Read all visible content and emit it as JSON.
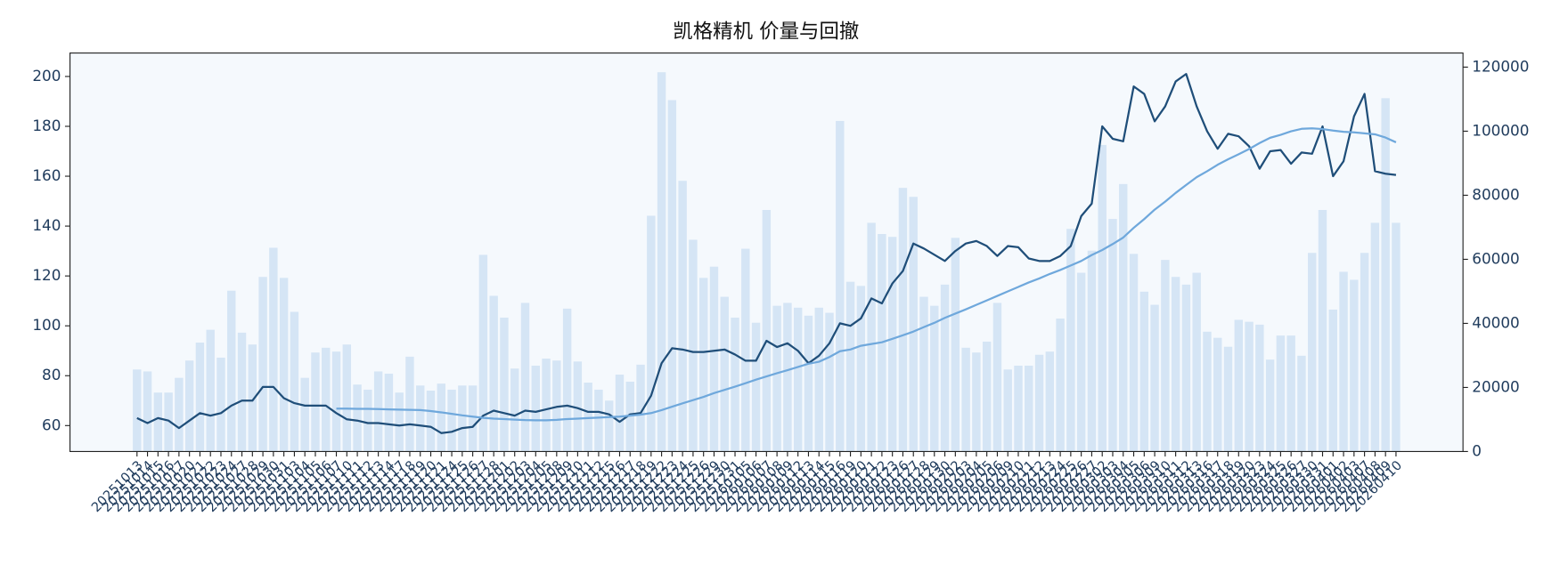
{
  "chart_data": {
    "type": "bar-line",
    "title": "凯格精机 价量与回撤",
    "categories": [
      "20251013",
      "20251014",
      "20251015",
      "20251016",
      "20251017",
      "20251020",
      "20251021",
      "20251022",
      "20251023",
      "20251024",
      "20251027",
      "20251028",
      "20251029",
      "20251030",
      "20251031",
      "20251103",
      "20251104",
      "20251105",
      "20251106",
      "20251107",
      "20251110",
      "20251111",
      "20251112",
      "20251113",
      "20251114",
      "20251117",
      "20251118",
      "20251119",
      "20251120",
      "20251121",
      "20251124",
      "20251125",
      "20251126",
      "20251127",
      "20251128",
      "20251201",
      "20251202",
      "20251203",
      "20251204",
      "20251205",
      "20251208",
      "20251209",
      "20251210",
      "20251211",
      "20251212",
      "20251215",
      "20251216",
      "20251217",
      "20251218",
      "20251219",
      "20251222",
      "20251223",
      "20251224",
      "20251225",
      "20251226",
      "20251229",
      "20251230",
      "20251231",
      "20260105",
      "20260106",
      "20260107",
      "20260108",
      "20260109",
      "20260112",
      "20260113",
      "20260114",
      "20260115",
      "20260116",
      "20260119",
      "20260120",
      "20260121",
      "20260122",
      "20260123",
      "20260126",
      "20260127",
      "20260128",
      "20260129",
      "20260130",
      "20260202",
      "20260203",
      "20260204",
      "20260205",
      "20260206",
      "20260209",
      "20260210",
      "20260211",
      "20260212",
      "20260213",
      "20260224",
      "20260225",
      "20260226",
      "20260227",
      "20260302",
      "20260303",
      "20260304",
      "20260305",
      "20260306",
      "20260309",
      "20260310",
      "20260311",
      "20260312",
      "20260313",
      "20260316",
      "20260317",
      "20260318",
      "20260319",
      "20260320",
      "20260323",
      "20260324",
      "20260325",
      "20260326",
      "20260327",
      "20260330",
      "20260331",
      "20260401",
      "20260402",
      "20260403",
      "20260407",
      "20260408",
      "20260409",
      "20260410"
    ],
    "series": [
      {
        "type": "bar",
        "axis": "y2",
        "color": "#d5e5f5",
        "values": [
          25600,
          25000,
          18400,
          18400,
          23000,
          28400,
          34000,
          38000,
          29300,
          50200,
          37100,
          33400,
          54500,
          63600,
          54200,
          43600,
          23000,
          30900,
          32400,
          31200,
          33400,
          20900,
          19300,
          25000,
          24300,
          18400,
          29600,
          20600,
          19000,
          21200,
          19300,
          20600,
          20600,
          61400,
          48600,
          41800,
          25900,
          46400,
          26800,
          29000,
          28400,
          44600,
          28100,
          21500,
          19300,
          15900,
          24000,
          21800,
          27100,
          73600,
          118400,
          109700,
          84500,
          66100,
          54200,
          57700,
          48300,
          41800,
          63300,
          40200,
          75400,
          45500,
          46400,
          44900,
          42400,
          44900,
          43300,
          103200,
          53000,
          51700,
          71400,
          67900,
          67000,
          82300,
          79500,
          48300,
          45500,
          52100,
          66700,
          32400,
          30900,
          34300,
          46400,
          25600,
          26800,
          26800,
          30200,
          31200,
          41500,
          69500,
          55800,
          62700,
          95700,
          72600,
          83500,
          61700,
          49900,
          45800,
          59800,
          54500,
          52100,
          55800,
          37400,
          35500,
          32700,
          41100,
          40500,
          39600,
          28700,
          36200,
          36200,
          29900,
          62000,
          75400,
          44300,
          56100,
          53600,
          62000,
          71400,
          110300,
          71400
        ]
      },
      {
        "type": "line",
        "color": "#1f4e79",
        "values": [
          63,
          61,
          63,
          62,
          59,
          62,
          65,
          64,
          65,
          68,
          70,
          70,
          75.5,
          75.5,
          71,
          69,
          68,
          68,
          68,
          65,
          62.5,
          62,
          61,
          61,
          60.5,
          60,
          60.5,
          60,
          59.5,
          57,
          57.5,
          59,
          59.5,
          64,
          66,
          65,
          64,
          66,
          65.5,
          66.5,
          67.5,
          68,
          67,
          65.5,
          65.5,
          64.5,
          61.5,
          64.5,
          65,
          72,
          85,
          91,
          90.5,
          89.5,
          89.5,
          90,
          90.5,
          88.5,
          86,
          86,
          94,
          91.5,
          93,
          90,
          85,
          88,
          93,
          101,
          100,
          103,
          111,
          109,
          117,
          122,
          133,
          131,
          128.5,
          126,
          130,
          133,
          134,
          132,
          128,
          132,
          131.5,
          127,
          126,
          126,
          128,
          132,
          144,
          149,
          180,
          175,
          174,
          196,
          193,
          182,
          188,
          198,
          201,
          188,
          178,
          171,
          177,
          176,
          172,
          163,
          170,
          170.5,
          165,
          169.5,
          169,
          180,
          160,
          166,
          184,
          193,
          162,
          161,
          160.5
        ]
      },
      {
        "type": "line",
        "color": "#6fa8dc",
        "values": [
          null,
          null,
          null,
          null,
          null,
          null,
          null,
          null,
          null,
          null,
          null,
          null,
          null,
          null,
          null,
          null,
          null,
          null,
          null,
          66.8,
          66.8,
          66.7,
          66.7,
          66.6,
          66.5,
          66.4,
          66.3,
          66.2,
          65.8,
          65.3,
          64.7,
          64.1,
          63.6,
          63.1,
          62.8,
          62.6,
          62.4,
          62.2,
          62.1,
          62.1,
          62.3,
          62.6,
          62.8,
          63,
          63.2,
          63.4,
          63.6,
          64,
          64.4,
          65,
          66.2,
          67.6,
          68.9,
          70.2,
          71.5,
          73,
          74.3,
          75.6,
          77,
          78.4,
          79.7,
          81,
          82.2,
          83.5,
          84.8,
          85.6,
          87.5,
          89.8,
          90.5,
          92,
          92.7,
          93.4,
          94.8,
          96.2,
          97.7,
          99.5,
          101.2,
          103.2,
          104.9,
          106.6,
          108.4,
          110.2,
          112,
          113.8,
          115.6,
          117.4,
          119,
          120.8,
          122.4,
          124.2,
          126,
          128.4,
          130.4,
          132.8,
          135.4,
          139.3,
          142.8,
          146.6,
          149.8,
          153.3,
          156.5,
          159.6,
          162,
          164.6,
          166.8,
          168.8,
          170.9,
          173.3,
          175.4,
          176.6,
          178,
          179,
          179.2,
          178.9,
          178.3,
          177.8,
          177.6,
          177.2,
          176.8,
          175.5,
          173.6
        ]
      }
    ],
    "ylim": [
      49.6,
      209.4
    ],
    "yticks": [
      60,
      80,
      100,
      120,
      140,
      160,
      180,
      200
    ],
    "y2lim": [
      0,
      124400
    ],
    "y2ticks": [
      0,
      20000,
      40000,
      60000,
      80000,
      100000,
      120000
    ]
  }
}
